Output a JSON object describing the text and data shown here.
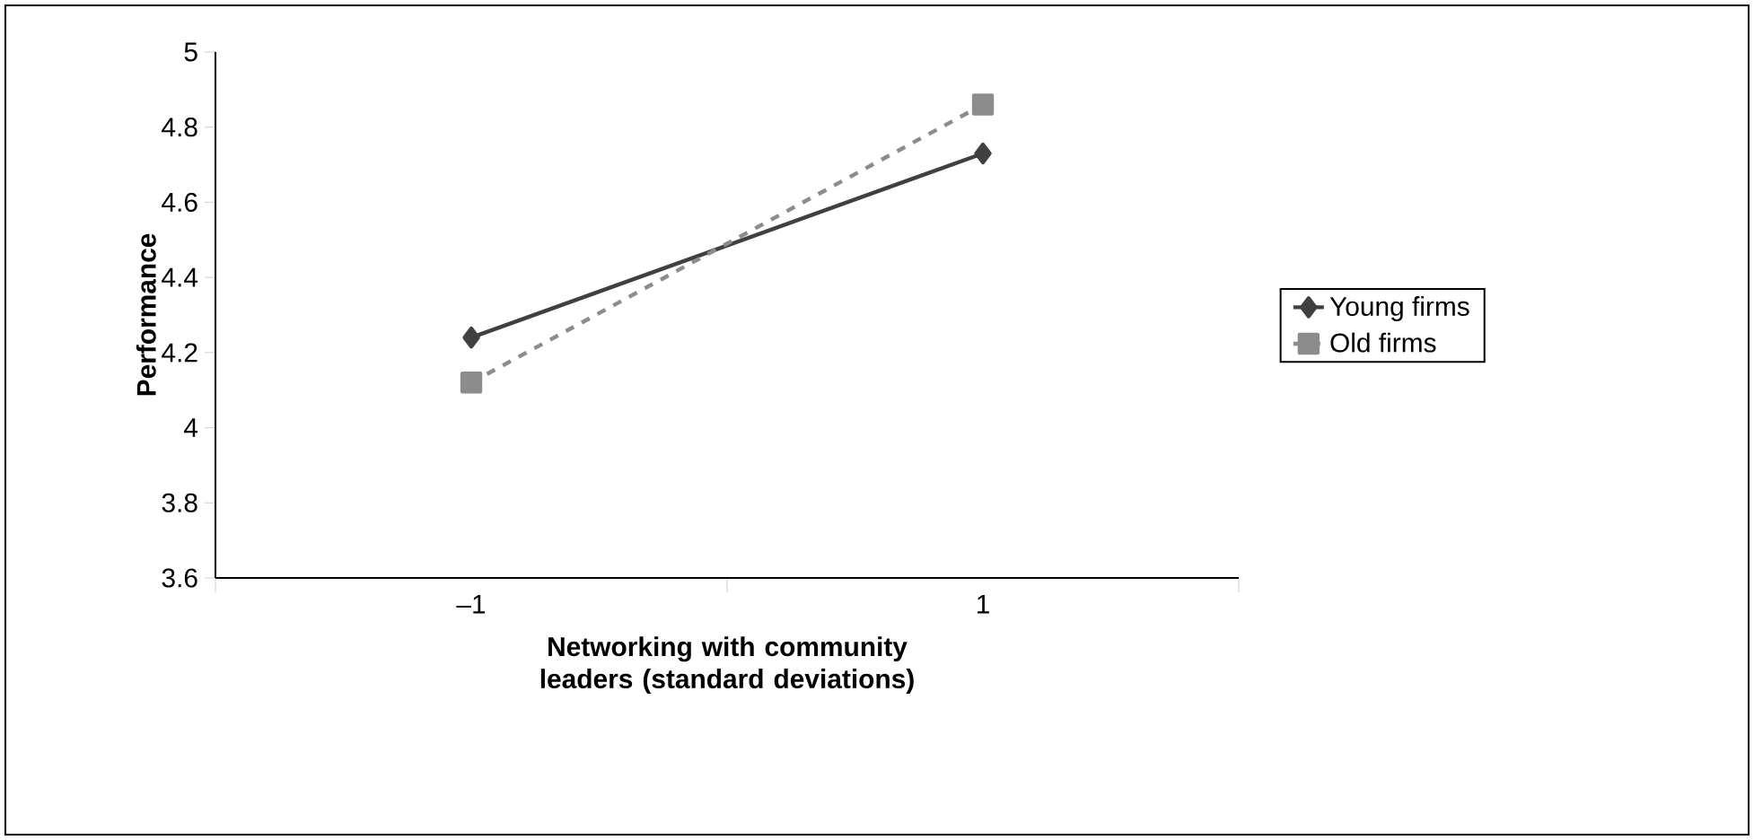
{
  "chart_data": {
    "type": "line",
    "xlabel": "Networking with community leaders (standard deviations)",
    "ylabel": "Performance",
    "categories": [
      "–1",
      "1"
    ],
    "series": [
      {
        "name": "Young firms",
        "color": "#404040",
        "values": [
          4.24,
          4.73
        ],
        "marker": "diamond",
        "line_style": "solid"
      },
      {
        "name": "Old firms",
        "color": "#8c8c8c",
        "values": [
          4.12,
          4.86
        ],
        "marker": "square",
        "line_style": "dashed"
      }
    ],
    "ylim": [
      3.6,
      5
    ],
    "yticks": [
      3.6,
      3.8,
      4,
      4.2,
      4.4,
      4.6,
      4.8,
      5
    ],
    "grid": false,
    "legend": "right"
  }
}
